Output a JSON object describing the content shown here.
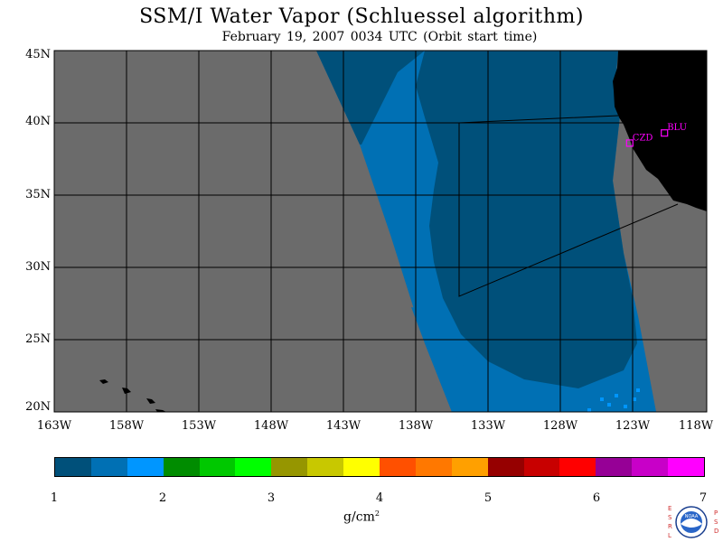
{
  "title": "SSM/I Water Vapor (Schluessel algorithm)",
  "subtitle": "February 19, 2007  0034 UTC  (Orbit start time)",
  "lat_labels": [
    "45N",
    "40N",
    "35N",
    "30N",
    "25N",
    "20N"
  ],
  "lon_labels": [
    "163W",
    "158W",
    "153W",
    "148W",
    "143W",
    "138W",
    "133W",
    "128W",
    "123W",
    "118W"
  ],
  "stations": [
    {
      "code": "CZD",
      "lat": 38.6,
      "lon": -123.2
    },
    {
      "code": "BLU",
      "lat": 39.3,
      "lon": -120.8
    }
  ],
  "colorbar": {
    "ticks": [
      "1",
      "2",
      "3",
      "4",
      "5",
      "6",
      "7"
    ],
    "units_base": "g/cm",
    "units_exp": "2",
    "colors": [
      "#00507a",
      "#0070b4",
      "#0096ff",
      "#008c00",
      "#00c800",
      "#00ff00",
      "#969600",
      "#c8c800",
      "#ffff00",
      "#ff5000",
      "#ff7800",
      "#ffa000",
      "#960000",
      "#c80000",
      "#ff0000",
      "#960096",
      "#c800c8",
      "#ff00ff"
    ]
  },
  "colors": {
    "no_data": "#6b6b6b",
    "land": "#000000",
    "marker": "#ff00ff",
    "swath_bin1": "#00507a",
    "swath_bin2": "#0070b4",
    "swath_bin3": "#0096ff"
  },
  "logo": {
    "left_letters": [
      "E",
      "S",
      "R",
      "L"
    ],
    "right_letters": [
      "P",
      "S",
      "D"
    ],
    "center_text": "NOAA"
  }
}
